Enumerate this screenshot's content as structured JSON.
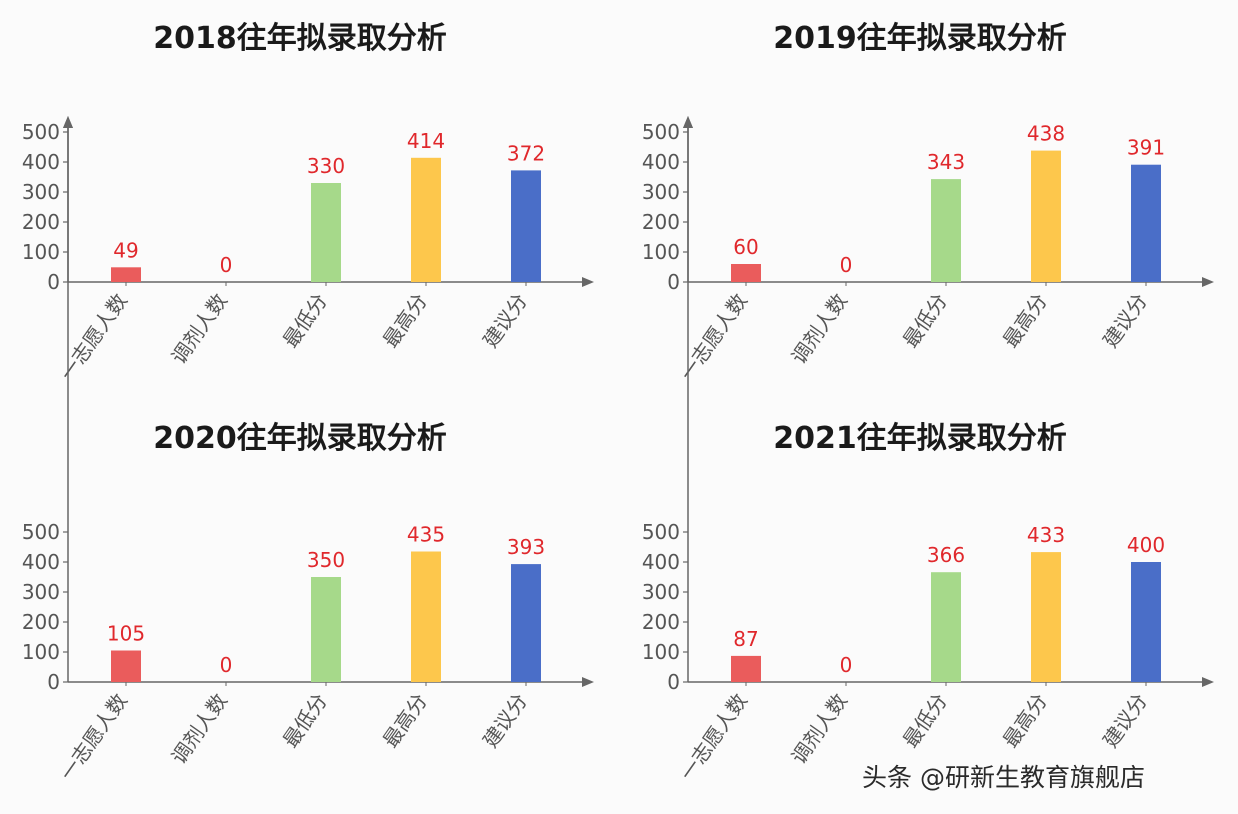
{
  "chart_data": [
    {
      "type": "bar",
      "title": "2018往年拟录取分析",
      "categories": [
        "一志愿人数",
        "调剂人数",
        "最低分",
        "最高分",
        "建议分"
      ],
      "values": [
        49,
        0,
        330,
        414,
        372
      ],
      "ylim": [
        0,
        500
      ],
      "yticks": [
        0,
        100,
        200,
        300,
        400,
        500
      ],
      "colors": [
        "#ea5c5c",
        "#e6e6e6",
        "#a6d98a",
        "#fdc74c",
        "#4a6ec8"
      ],
      "grid": false
    },
    {
      "type": "bar",
      "title": "2019往年拟录取分析",
      "categories": [
        "一志愿人数",
        "调剂人数",
        "最低分",
        "最高分",
        "建议分"
      ],
      "values": [
        60,
        0,
        343,
        438,
        391
      ],
      "ylim": [
        0,
        500
      ],
      "yticks": [
        0,
        100,
        200,
        300,
        400,
        500
      ],
      "colors": [
        "#ea5c5c",
        "#e6e6e6",
        "#a6d98a",
        "#fdc74c",
        "#4a6ec8"
      ],
      "grid": false
    },
    {
      "type": "bar",
      "title": "2020往年拟录取分析",
      "categories": [
        "一志愿人数",
        "调剂人数",
        "最低分",
        "最高分",
        "建议分"
      ],
      "values": [
        105,
        0,
        350,
        435,
        393
      ],
      "ylim": [
        0,
        500
      ],
      "yticks": [
        0,
        100,
        200,
        300,
        400,
        500
      ],
      "colors": [
        "#ea5c5c",
        "#e6e6e6",
        "#a6d98a",
        "#fdc74c",
        "#4a6ec8"
      ],
      "grid": false
    },
    {
      "type": "bar",
      "title": "2021往年拟录取分析",
      "categories": [
        "一志愿人数",
        "调剂人数",
        "最低分",
        "最高分",
        "建议分"
      ],
      "values": [
        87,
        0,
        366,
        433,
        400
      ],
      "ylim": [
        0,
        500
      ],
      "yticks": [
        0,
        100,
        200,
        300,
        400,
        500
      ],
      "colors": [
        "#ea5c5c",
        "#e6e6e6",
        "#a6d98a",
        "#fdc74c",
        "#4a6ec8"
      ],
      "grid": false
    }
  ],
  "watermark": "头条 @研新生教育旗舰店",
  "colors": {
    "axis": "#666666",
    "value_label": "#e0282c",
    "tick_label": "#555555"
  }
}
